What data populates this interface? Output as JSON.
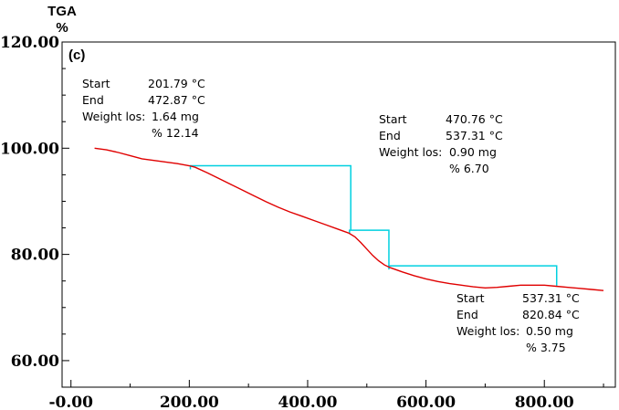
{
  "chart_data": {
    "type": "line",
    "ylabel": [
      "TGA",
      "%"
    ],
    "panel_label": "(c)",
    "xlim": [
      -15,
      920
    ],
    "ylim": [
      55,
      120
    ],
    "x_ticks": [
      0,
      200,
      400,
      600,
      800
    ],
    "x_tick_labels": [
      "-0.00",
      "200.00",
      "400.00",
      "600.00",
      "800.00"
    ],
    "y_ticks": [
      60,
      80,
      100,
      120
    ],
    "y_tick_labels": [
      "60.00",
      "80.00",
      "100.00",
      "120.00"
    ],
    "grid": false,
    "colors": {
      "curve": "#e00000",
      "steps": "#00d0e0"
    },
    "series": [
      {
        "x": [
          40,
          60,
          80,
          100,
          120,
          140,
          160,
          180,
          200,
          210,
          230,
          250,
          270,
          290,
          310,
          330,
          350,
          370,
          390,
          410,
          430,
          450,
          470,
          480,
          490,
          500,
          510,
          520,
          530,
          540,
          560,
          580,
          600,
          620,
          640,
          660,
          680,
          700,
          720,
          740,
          760,
          780,
          800,
          820,
          840,
          860,
          880,
          900
        ],
        "y": [
          100.0,
          99.7,
          99.2,
          98.6,
          98.0,
          97.7,
          97.4,
          97.1,
          96.7,
          96.4,
          95.4,
          94.3,
          93.2,
          92.1,
          91.0,
          89.9,
          88.9,
          88.0,
          87.2,
          86.4,
          85.6,
          84.8,
          84.0,
          83.3,
          82.2,
          81.0,
          79.8,
          78.8,
          78.0,
          77.5,
          76.7,
          76.0,
          75.4,
          74.9,
          74.5,
          74.2,
          73.9,
          73.7,
          73.8,
          74.0,
          74.2,
          74.2,
          74.2,
          74.0,
          73.8,
          73.6,
          73.4,
          73.2
        ]
      }
    ],
    "steps": [
      {
        "start_c": 201.79,
        "end_c": 472.87,
        "y_start": 96.7,
        "y_end": 84.55
      },
      {
        "start_c": 470.76,
        "end_c": 537.31,
        "y_start": 84.55,
        "y_end": 77.85
      },
      {
        "start_c": 537.31,
        "end_c": 820.84,
        "y_start": 77.85,
        "y_end": 74.1
      }
    ],
    "annotations": [
      {
        "start_label": "Start",
        "start_value": "201.79 °C",
        "end_label": "End",
        "end_value": "472.87 °C",
        "weight_label": "Weight los:",
        "weight_value": "1.64 mg",
        "percent": "% 12.14"
      },
      {
        "start_label": "Start",
        "start_value": "470.76 °C",
        "end_label": "End",
        "end_value": "537.31 °C",
        "weight_label": "Weight los:",
        "weight_value": "0.90 mg",
        "percent": "% 6.70"
      },
      {
        "start_label": "Start",
        "start_value": "537.31 °C",
        "end_label": "End",
        "end_value": "820.84 °C",
        "weight_label": "Weight los:",
        "weight_value": "0.50 mg",
        "percent": "% 3.75"
      }
    ]
  }
}
